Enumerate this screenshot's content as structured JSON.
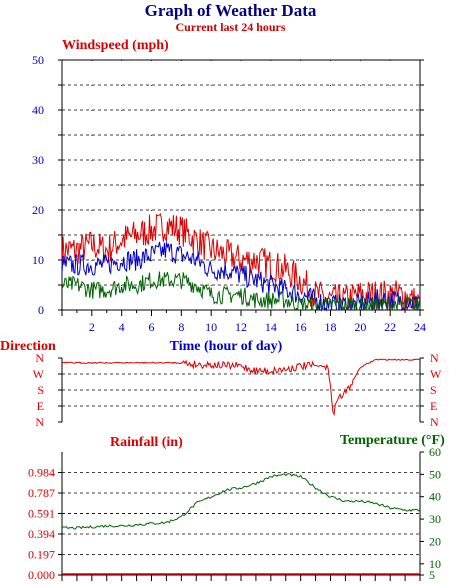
{
  "title": "Graph of Weather Data",
  "subtitle": "Current last 24 hours",
  "colors": {
    "red": "#dd0000",
    "blue": "#0000cc",
    "green": "#006400",
    "axis": "#000000",
    "grid": "#000000"
  },
  "chart_data": [
    {
      "type": "line",
      "ylabel": "Windspeed (mph)",
      "xlabel": "Time (hour of day)",
      "ylim": [
        0,
        50
      ],
      "yticks": [
        0,
        10,
        20,
        30,
        40,
        50
      ],
      "xlim": [
        0,
        24
      ],
      "xticks": [
        2,
        4,
        6,
        8,
        10,
        12,
        14,
        16,
        18,
        20,
        22,
        24
      ],
      "grid": true,
      "x": [
        0,
        1,
        2,
        3,
        4,
        5,
        6,
        7,
        8,
        9,
        10,
        11,
        12,
        13,
        14,
        15,
        16,
        17,
        18,
        19,
        20,
        21,
        22,
        23,
        24
      ],
      "series": [
        {
          "color": "#dd0000",
          "values": [
            12,
            12,
            13,
            12,
            14,
            15,
            16,
            17,
            16,
            14,
            12,
            11,
            10,
            10,
            9,
            8,
            6,
            3,
            2,
            2,
            3,
            3,
            3,
            3,
            1
          ]
        },
        {
          "color": "#0000cc",
          "values": [
            9,
            9,
            9,
            9,
            10,
            10,
            11,
            12,
            11,
            10,
            8,
            8,
            7,
            6,
            5,
            4,
            3,
            2,
            1,
            1,
            1,
            2,
            2,
            2,
            1
          ]
        },
        {
          "color": "#006400",
          "values": [
            5,
            5,
            4,
            4,
            5,
            5,
            6,
            6,
            6,
            5,
            3,
            3,
            3,
            2,
            2,
            2,
            1,
            1,
            1,
            1,
            1,
            1,
            1,
            1,
            1
          ]
        }
      ]
    },
    {
      "type": "line",
      "ylabel": "Direction",
      "categories": [
        "N",
        "W",
        "S",
        "E",
        "N"
      ],
      "xlim": [
        0,
        24
      ],
      "grid": true,
      "x": [
        0,
        1,
        2,
        3,
        4,
        5,
        6,
        7,
        8,
        9,
        10,
        11,
        12,
        13,
        14,
        15,
        16,
        17,
        17.8,
        18.2,
        18.5,
        19,
        20,
        21,
        22,
        23,
        24
      ],
      "series": [
        {
          "color": "#dd0000",
          "values": [
            0.3,
            0.3,
            0.3,
            0.3,
            0.3,
            0.3,
            0.3,
            0.3,
            0.3,
            0.4,
            0.4,
            0.5,
            0.5,
            0.8,
            0.8,
            0.7,
            0.5,
            0.5,
            0.5,
            3.4,
            2.5,
            2.2,
            0.6,
            0.1,
            0.1,
            0.1,
            0.1
          ]
        }
      ]
    },
    {
      "type": "line",
      "ylabel": "Rainfall (in)",
      "y2label": "Temperature (°F)",
      "ylim": [
        0,
        1.181
      ],
      "yticks": [
        "0.000",
        "0.197",
        "0.394",
        "0.591",
        "0.787",
        "0.984"
      ],
      "y2lim": [
        5,
        60
      ],
      "y2ticks": [
        5,
        10,
        20,
        30,
        40,
        50,
        60
      ],
      "xlim": [
        0,
        24
      ],
      "grid": true,
      "x": [
        0,
        1,
        2,
        3,
        4,
        5,
        6,
        7,
        8,
        9,
        10,
        11,
        12,
        13,
        14,
        15,
        16,
        17,
        18,
        19,
        20,
        21,
        22,
        23,
        24
      ],
      "series": [
        {
          "name": "Rainfall",
          "color": "#dd0000",
          "values": [
            0,
            0,
            0,
            0,
            0,
            0,
            0,
            0,
            0,
            0,
            0,
            0,
            0,
            0,
            0,
            0,
            0,
            0,
            0,
            0,
            0,
            0,
            0,
            0,
            0
          ]
        },
        {
          "name": "Temperature",
          "color": "#006400",
          "values": [
            26,
            26,
            26.5,
            27,
            27,
            27.5,
            28,
            28.5,
            31,
            37,
            40,
            43,
            44,
            46,
            49,
            50,
            49,
            44,
            40,
            38,
            38,
            37,
            35,
            34,
            34
          ]
        }
      ]
    }
  ]
}
